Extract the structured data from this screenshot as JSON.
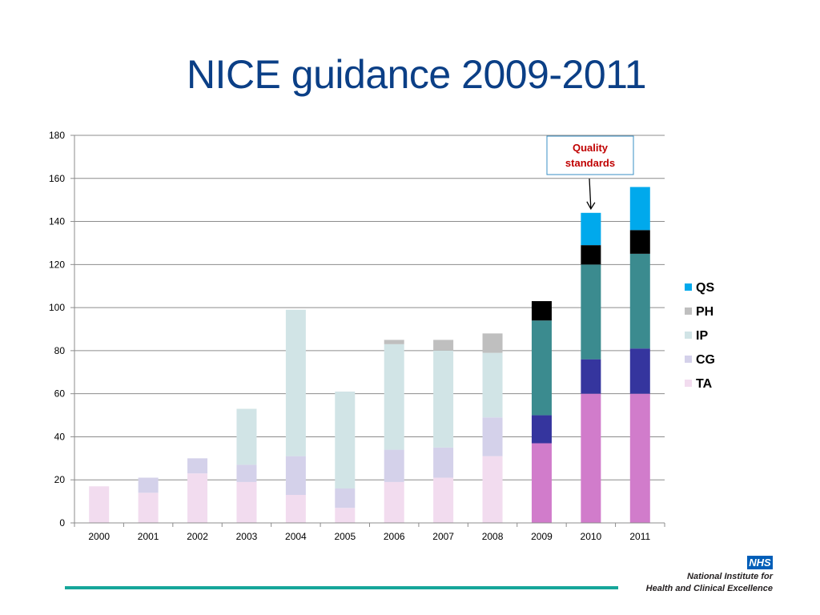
{
  "title": "NICE guidance 2009-2011",
  "annotation": "Quality standards",
  "logo": {
    "mark": "NHS",
    "organisation_line1": "National Institute for",
    "organisation_line2": "Health and Clinical Excellence"
  },
  "colors": {
    "title": "#0b3f86",
    "annotation_text": "#c00000",
    "annotation_border": "#3a8fc4",
    "footer_line": "#16a69a",
    "nhs_blue": "#005eb8",
    "faded": {
      "TA": "#f2dcef",
      "CG": "#d4d1ea",
      "IP": "#d1e4e6",
      "PH": "#bfbfbf",
      "QS": "#00a9ec"
    },
    "bold": {
      "TA": "#d17ccb",
      "CG": "#35359e",
      "IP": "#3b8b8f",
      "PH": "#000000",
      "QS": "#00a9ec"
    }
  },
  "chart_data": {
    "type": "bar",
    "stacked": true,
    "categories": [
      "2000",
      "2001",
      "2002",
      "2003",
      "2004",
      "2005",
      "2006",
      "2007",
      "2008",
      "2009",
      "2010",
      "2011"
    ],
    "highlighted_categories": [
      "2009",
      "2010",
      "2011"
    ],
    "series": [
      {
        "name": "TA",
        "values": [
          17,
          14,
          23,
          19,
          13,
          7,
          19,
          21,
          31,
          37,
          60,
          60
        ]
      },
      {
        "name": "CG",
        "values": [
          0,
          7,
          7,
          8,
          18,
          9,
          15,
          14,
          18,
          13,
          16,
          21
        ]
      },
      {
        "name": "IP",
        "values": [
          0,
          0,
          0,
          26,
          68,
          45,
          49,
          45,
          30,
          44,
          44,
          44
        ]
      },
      {
        "name": "PH",
        "values": [
          0,
          0,
          0,
          0,
          0,
          0,
          2,
          5,
          9,
          9,
          9,
          11
        ]
      },
      {
        "name": "QS",
        "values": [
          0,
          0,
          0,
          0,
          0,
          0,
          0,
          0,
          0,
          0,
          15,
          20
        ]
      }
    ],
    "legend_order": [
      "QS",
      "PH",
      "IP",
      "CG",
      "TA"
    ],
    "legend_position": "right",
    "ylim": [
      0,
      180
    ],
    "yticks": [
      0,
      20,
      40,
      60,
      80,
      100,
      120,
      140,
      160,
      180
    ],
    "grid": true,
    "xlabel": "",
    "ylabel": ""
  }
}
